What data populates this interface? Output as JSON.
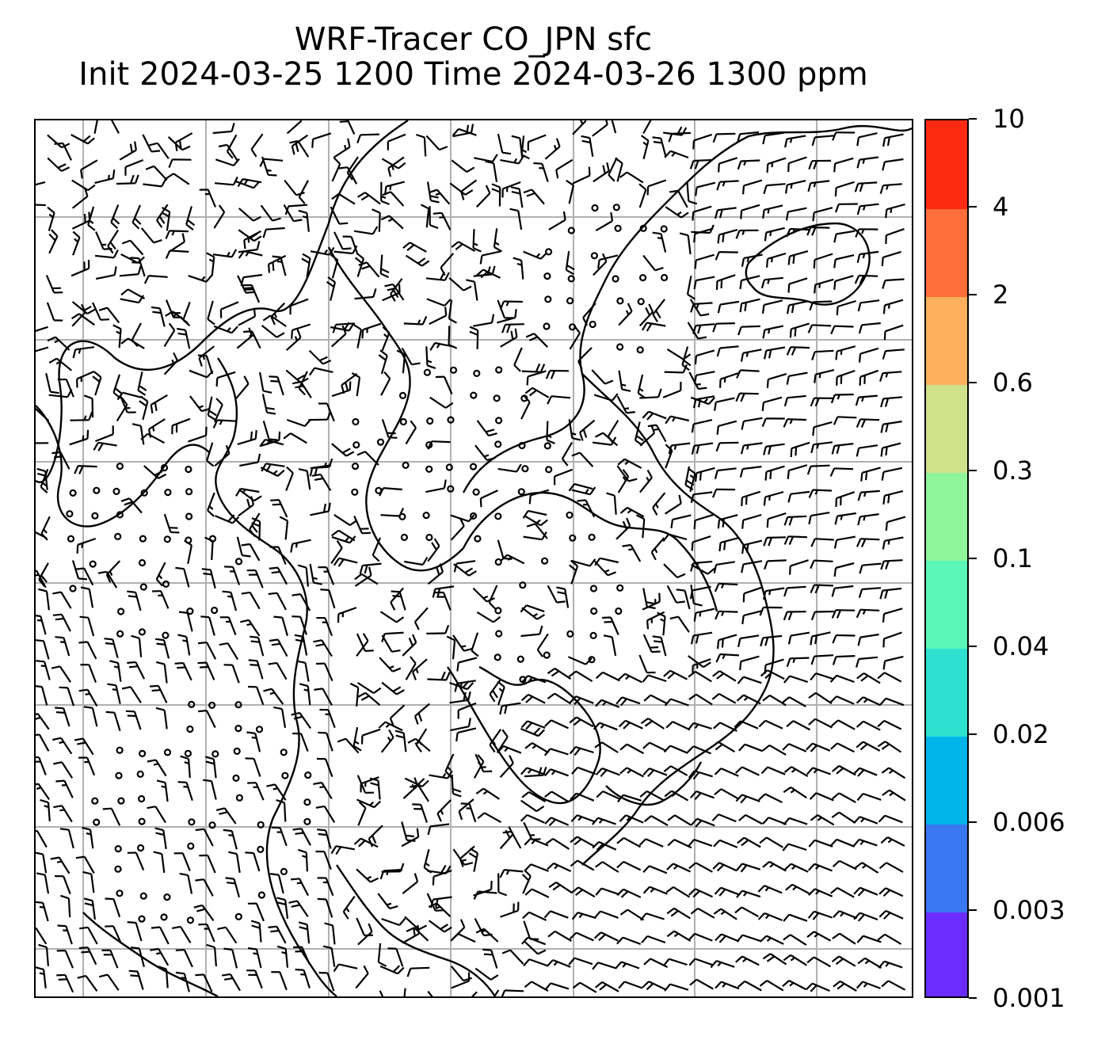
{
  "title": {
    "line1": "WRF-Tracer CO_JPN sfc",
    "line2": "Init 2024-03-25 1200 Time 2024-03-26 1300 ppm"
  },
  "map": {
    "layers": [
      "coastlines",
      "lat-lon-gridlines",
      "wind-barbs",
      "calm-wind-circles"
    ],
    "gridline_color": "#b0b0b0",
    "coastline_color": "#000000",
    "barb_color": "#000000"
  },
  "colorbar": {
    "levels": [
      "0.001",
      "0.003",
      "0.006",
      "0.02",
      "0.04",
      "0.1",
      "0.3",
      "0.6",
      "2",
      "4",
      "10"
    ],
    "colors": [
      "#6a2cff",
      "#3a78f2",
      "#00b4ea",
      "#2ee0d0",
      "#5bf7b8",
      "#8ff59a",
      "#cfe18a",
      "#fdb05c",
      "#ff6d38",
      "#ff2a12"
    ]
  }
}
